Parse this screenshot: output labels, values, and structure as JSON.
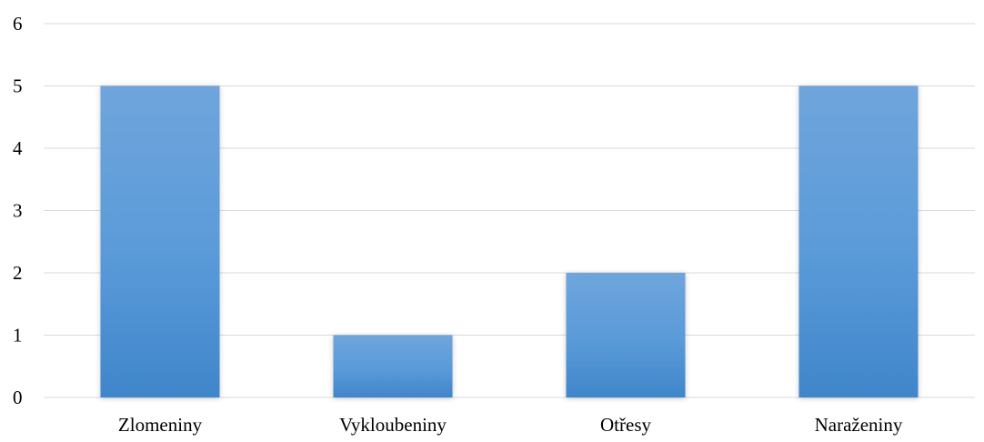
{
  "chart_data": {
    "type": "bar",
    "title": "",
    "xlabel": "",
    "ylabel": "",
    "categories": [
      "Zlomeniny",
      "Vykloubeniny",
      "Otřesy",
      "Naraženiny"
    ],
    "values": [
      5,
      1,
      2,
      5
    ],
    "ylim": [
      0,
      6
    ],
    "yticks": [
      "0",
      "1",
      "2",
      "3",
      "4",
      "5",
      "6"
    ],
    "grid": true,
    "legend": "none",
    "colors": {
      "bar_top": "#6fa5dc",
      "bar_mid": "#5a9ad9",
      "bar_bottom": "#3f86ca",
      "grid": "#d9d9d9",
      "axis": "#d9d9d9"
    }
  }
}
